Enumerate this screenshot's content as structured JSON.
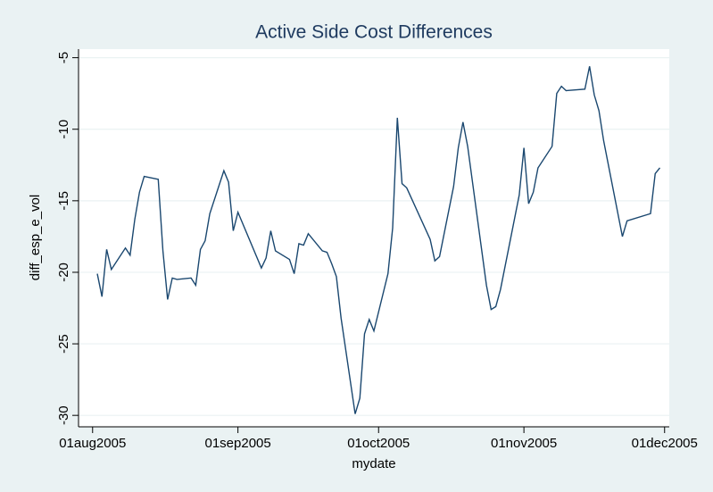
{
  "chart_data": {
    "type": "line",
    "title": "Active Side Cost Differences",
    "x_label": "mydate",
    "y_label": "diff_esp_e_vol",
    "x": [
      "2005-08-02",
      "2005-08-03",
      "2005-08-04",
      "2005-08-05",
      "2005-08-08",
      "2005-08-09",
      "2005-08-10",
      "2005-08-11",
      "2005-08-12",
      "2005-08-15",
      "2005-08-16",
      "2005-08-17",
      "2005-08-18",
      "2005-08-19",
      "2005-08-22",
      "2005-08-23",
      "2005-08-24",
      "2005-08-25",
      "2005-08-26",
      "2005-08-29",
      "2005-08-30",
      "2005-08-31",
      "2005-09-01",
      "2005-09-06",
      "2005-09-07",
      "2005-09-08",
      "2005-09-09",
      "2005-09-12",
      "2005-09-13",
      "2005-09-14",
      "2005-09-15",
      "2005-09-16",
      "2005-09-19",
      "2005-09-20",
      "2005-09-21",
      "2005-09-22",
      "2005-09-23",
      "2005-09-26",
      "2005-09-27",
      "2005-09-28",
      "2005-09-29",
      "2005-09-30",
      "2005-10-03",
      "2005-10-04",
      "2005-10-05",
      "2005-10-06",
      "2005-10-07",
      "2005-10-12",
      "2005-10-13",
      "2005-10-14",
      "2005-10-17",
      "2005-10-18",
      "2005-10-19",
      "2005-10-20",
      "2005-10-24",
      "2005-10-25",
      "2005-10-26",
      "2005-10-27",
      "2005-10-31",
      "2005-11-01",
      "2005-11-02",
      "2005-11-03",
      "2005-11-04",
      "2005-11-07",
      "2005-11-08",
      "2005-11-09",
      "2005-11-10",
      "2005-11-14",
      "2005-11-15",
      "2005-11-16",
      "2005-11-17",
      "2005-11-18",
      "2005-11-22",
      "2005-11-23",
      "2005-11-28",
      "2005-11-29",
      "2005-11-30"
    ],
    "series": [
      {
        "name": "diff_esp_e_vol",
        "color": "#1a476f",
        "values": [
          -20.1,
          -21.7,
          -18.4,
          -19.8,
          -18.3,
          -18.8,
          -16.3,
          -14.4,
          -13.3,
          -13.5,
          -18.5,
          -21.9,
          -20.4,
          -20.5,
          -20.4,
          -20.9,
          -18.4,
          -17.8,
          -15.9,
          -12.9,
          -13.7,
          -17.1,
          -15.8,
          -19.7,
          -19.0,
          -17.1,
          -18.5,
          -19.1,
          -20.1,
          -18.0,
          -18.1,
          -17.3,
          -18.5,
          -18.6,
          -19.4,
          -20.3,
          -23.2,
          -29.9,
          -28.8,
          -24.3,
          -23.3,
          -24.1,
          -20.1,
          -16.9,
          -9.2,
          -13.8,
          -14.1,
          -17.7,
          -19.2,
          -18.9,
          -14.0,
          -11.3,
          -9.5,
          -11.2,
          -20.9,
          -22.6,
          -22.4,
          -21.2,
          -14.6,
          -11.3,
          -15.2,
          -14.4,
          -12.7,
          -11.2,
          -7.5,
          -7.0,
          -7.3,
          -7.2,
          -5.6,
          -7.6,
          -8.7,
          -10.8,
          -17.5,
          -16.4,
          -15.9,
          -13.1,
          -12.7
        ]
      }
    ],
    "xlim": [
      "2005-07-29",
      "2005-12-02"
    ],
    "xticks": [
      {
        "value": "2005-08-01",
        "label": "01aug2005"
      },
      {
        "value": "2005-09-01",
        "label": "01sep2005"
      },
      {
        "value": "2005-10-01",
        "label": "01oct2005"
      },
      {
        "value": "2005-11-01",
        "label": "01nov2005"
      },
      {
        "value": "2005-12-01",
        "label": "01dec2005"
      }
    ],
    "ylim": [
      -30.8,
      -4.4
    ],
    "yticks": [
      -30,
      -25,
      -20,
      -15,
      -10,
      -5
    ],
    "grid": true
  }
}
